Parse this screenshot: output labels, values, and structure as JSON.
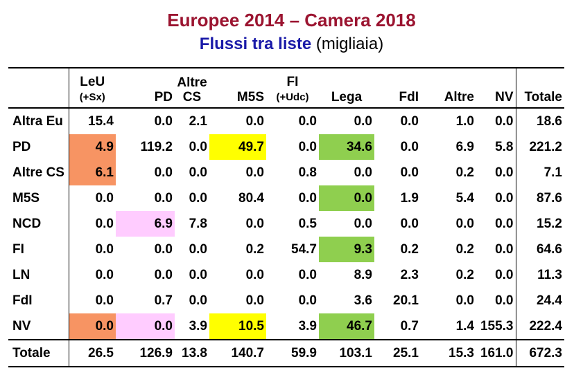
{
  "title": "Europee 2014 – Camera 2018",
  "subtitle_strong": "Flussi tra liste",
  "subtitle_unit": "(migliaia)",
  "columns": [
    {
      "line1": "LeU",
      "line2": "(+Sx)"
    },
    {
      "line1": "",
      "line2": "PD"
    },
    {
      "line1": "Altre",
      "line2": "CS"
    },
    {
      "line1": "",
      "line2": "M5S"
    },
    {
      "line1": "FI",
      "line2": "(+Udc)"
    },
    {
      "line1": "",
      "line2": "Lega"
    },
    {
      "line1": "",
      "line2": "FdI"
    },
    {
      "line1": "",
      "line2": "Altre"
    },
    {
      "line1": "",
      "line2": "NV"
    },
    {
      "line1": "",
      "line2": "Totale"
    }
  ],
  "highlight_colors": {
    "orange": "#f79463",
    "yellow": "#ffff00",
    "green": "#8fcf4f",
    "pink": "#ffccff"
  },
  "rows": [
    {
      "label": "Altra Eu",
      "values": [
        "15.4",
        "0.0",
        "2.1",
        "0.0",
        "0.0",
        "0.0",
        "0.0",
        "1.0",
        "0.0",
        "18.6"
      ],
      "hl": [
        "",
        "",
        "",
        "",
        "",
        "",
        "",
        "",
        "",
        ""
      ]
    },
    {
      "label": "PD",
      "values": [
        "4.9",
        "119.2",
        "0.0",
        "49.7",
        "0.0",
        "34.6",
        "0.0",
        "6.9",
        "5.8",
        "221.2"
      ],
      "hl": [
        "orange",
        "",
        "",
        "yellow",
        "",
        "green",
        "",
        "",
        "",
        ""
      ]
    },
    {
      "label": "Altre CS",
      "values": [
        "6.1",
        "0.0",
        "0.0",
        "0.0",
        "0.8",
        "0.0",
        "0.0",
        "0.2",
        "0.0",
        "7.1"
      ],
      "hl": [
        "orange",
        "",
        "",
        "",
        "",
        "",
        "",
        "",
        "",
        ""
      ]
    },
    {
      "label": "M5S",
      "values": [
        "0.0",
        "0.0",
        "0.0",
        "80.4",
        "0.0",
        "0.0",
        "1.9",
        "5.4",
        "0.0",
        "87.6"
      ],
      "hl": [
        "",
        "",
        "",
        "",
        "",
        "green",
        "",
        "",
        "",
        ""
      ]
    },
    {
      "label": "NCD",
      "values": [
        "0.0",
        "6.9",
        "7.8",
        "0.0",
        "0.5",
        "0.0",
        "0.0",
        "0.0",
        "0.0",
        "15.2"
      ],
      "hl": [
        "",
        "pink",
        "",
        "",
        "",
        "",
        "",
        "",
        "",
        ""
      ]
    },
    {
      "label": "FI",
      "values": [
        "0.0",
        "0.0",
        "0.0",
        "0.2",
        "54.7",
        "9.3",
        "0.2",
        "0.2",
        "0.0",
        "64.6"
      ],
      "hl": [
        "",
        "",
        "",
        "",
        "",
        "green",
        "",
        "",
        "",
        ""
      ]
    },
    {
      "label": "LN",
      "values": [
        "0.0",
        "0.0",
        "0.0",
        "0.0",
        "0.0",
        "8.9",
        "2.3",
        "0.2",
        "0.0",
        "11.3"
      ],
      "hl": [
        "",
        "",
        "",
        "",
        "",
        "",
        "",
        "",
        "",
        ""
      ]
    },
    {
      "label": "FdI",
      "values": [
        "0.0",
        "0.7",
        "0.0",
        "0.0",
        "0.0",
        "3.6",
        "20.1",
        "0.0",
        "0.0",
        "24.4"
      ],
      "hl": [
        "",
        "",
        "",
        "",
        "",
        "",
        "",
        "",
        "",
        ""
      ]
    },
    {
      "label": "NV",
      "values": [
        "0.0",
        "0.0",
        "3.9",
        "10.5",
        "3.9",
        "46.7",
        "0.7",
        "1.4",
        "155.3",
        "222.4"
      ],
      "hl": [
        "orange",
        "pink",
        "",
        "yellow",
        "",
        "green",
        "",
        "",
        "",
        ""
      ]
    }
  ],
  "total_row": {
    "label": "Totale",
    "values": [
      "26.5",
      "126.9",
      "13.8",
      "140.7",
      "59.9",
      "103.1",
      "25.1",
      "15.3",
      "161.0",
      "672.3"
    ]
  }
}
